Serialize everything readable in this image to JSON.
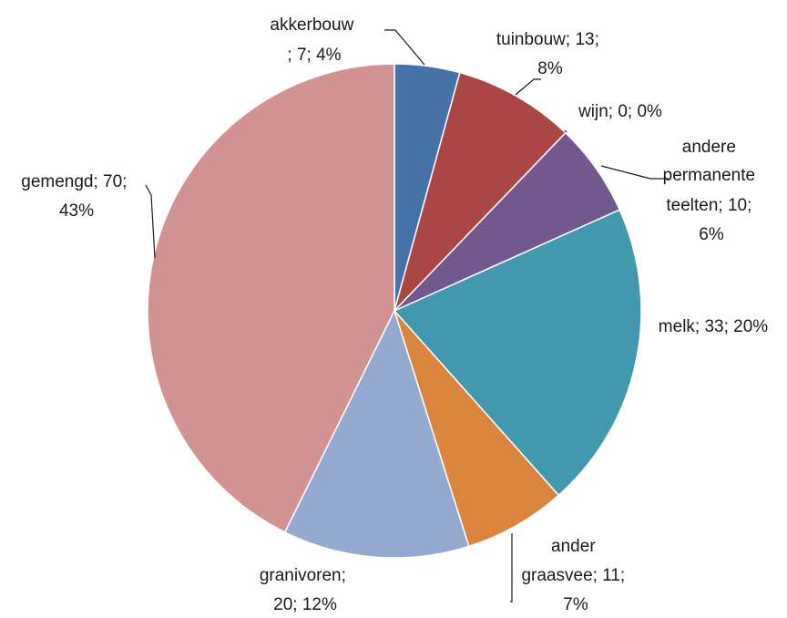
{
  "chart_data": {
    "type": "pie",
    "slices": [
      {
        "name": "akkerbouw",
        "value": 7,
        "percent": "4%",
        "label_lines": [
          "akkerbouw",
          "; 7; 4%"
        ],
        "color": "#4572A7"
      },
      {
        "name": "tuinbouw",
        "value": 13,
        "percent": "8%",
        "label_lines": [
          "tuinbouw; 13;",
          "8%"
        ],
        "color": "#AA4643"
      },
      {
        "name": "wijn",
        "value": 0,
        "percent": "0%",
        "label_lines": [
          "wijn; 0; 0%"
        ],
        "color": "#89A54E"
      },
      {
        "name": "andere permanente teelten",
        "value": 10,
        "percent": "6%",
        "label_lines": [
          "andere",
          "permanente",
          "teelten; 10;",
          "6%"
        ],
        "color": "#71588F"
      },
      {
        "name": "melk",
        "value": 33,
        "percent": "20%",
        "label_lines": [
          "melk; 33; 20%"
        ],
        "color": "#4198AF"
      },
      {
        "name": "ander graasvee",
        "value": 11,
        "percent": "7%",
        "label_lines": [
          "ander",
          "graasvee; 11;",
          "7%"
        ],
        "color": "#DB843D"
      },
      {
        "name": "granivoren",
        "value": 20,
        "percent": "12%",
        "label_lines": [
          "granivoren;",
          "20; 12%"
        ],
        "color": "#93A9CF"
      },
      {
        "name": "gemengd",
        "value": 70,
        "percent": "43%",
        "label_lines": [
          "gemengd; 70;",
          "43%"
        ],
        "color": "#D19392"
      }
    ]
  }
}
